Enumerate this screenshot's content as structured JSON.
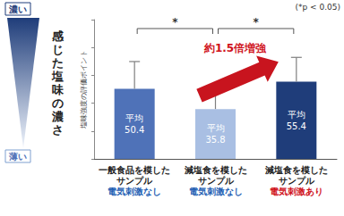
{
  "chart_data": {
    "type": "bar",
    "y_label": "塩味強度の評価ポイント",
    "categories": [
      "一般食品を模した\nサンプル",
      "減塩食を模した\nサンプル",
      "減塩食を模した\nサンプル"
    ],
    "category_notes": [
      {
        "text": "電気刺激なし",
        "color": "#1f5fb4"
      },
      {
        "text": "電気刺激なし",
        "color": "#1f5fb4"
      },
      {
        "text": "電気刺激あり",
        "color": "#d0121b"
      }
    ],
    "values": [
      50.4,
      35.8,
      55.4
    ],
    "errors": [
      19.5,
      16,
      17.5
    ],
    "value_labels": [
      "平均\n50.4",
      "平均\n35.8",
      "平均\n55.4"
    ],
    "data_labels": true,
    "colors": [
      "#4f72b8",
      "#a9bfe3",
      "#1f3d7a"
    ],
    "ylim": [
      0,
      100
    ],
    "yticks": [
      0,
      20,
      40,
      60,
      80,
      100
    ],
    "grid": false,
    "tick_labels": "x",
    "significance": [
      {
        "from": 0,
        "to": 1,
        "label": "*"
      },
      {
        "from": 1,
        "to": 2,
        "label": "*"
      }
    ],
    "significance_note": "(*p < 0.05)",
    "annotation": "約1.5倍増強",
    "scale_legend": {
      "label": "感じた塩味の濃さ",
      "high": "濃い",
      "low": "薄い"
    }
  }
}
